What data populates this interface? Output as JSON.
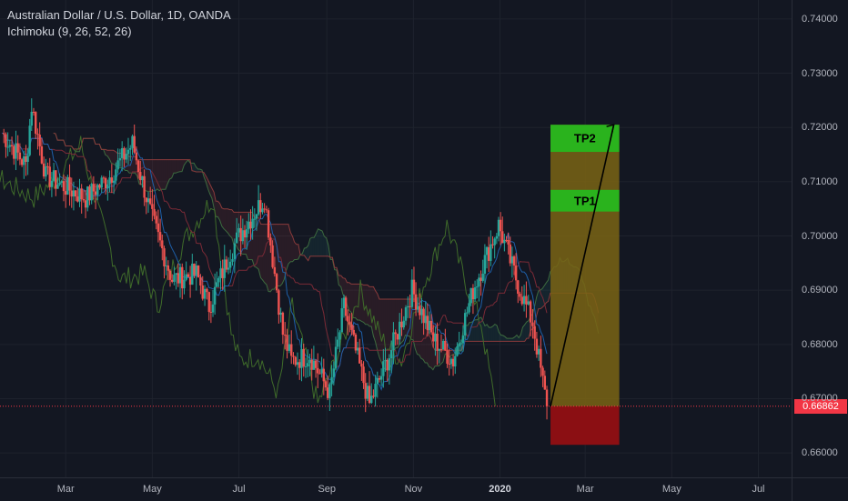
{
  "legend": {
    "symbol": "Australian Dollar / U.S. Dollar, 1D, OANDA",
    "indicator": "Ichimoku (9, 26, 52, 26)"
  },
  "price_scale": {
    "labels": [
      "0.74000",
      "0.73000",
      "0.72000",
      "0.71000",
      "0.70000",
      "0.69000",
      "0.68000",
      "0.67000",
      "0.66000"
    ],
    "current_price": "0.66862"
  },
  "time_scale": {
    "labels": [
      "Mar",
      "May",
      "Jul",
      "Sep",
      "Nov",
      "2020",
      "Mar",
      "May",
      "Jul"
    ]
  },
  "drawing": {
    "tp1_label": "TP1",
    "tp2_label": "TP2"
  },
  "colors": {
    "background": "#131722",
    "up_candle": "#26a69a",
    "down_candle": "#ef5350",
    "current_price": "#f23645",
    "profit_zone": "#7a6414",
    "loss_zone": "#8b0f13",
    "tp_zone": "#2ab31d"
  },
  "chart_data": {
    "type": "candlestick",
    "symbol": "AUDUSD",
    "timeframe": "1D",
    "ylim": [
      0.6555,
      0.7435
    ],
    "series_close_path": [
      [
        "2019-01-15",
        0.719
      ],
      [
        "2019-02-01",
        0.713
      ],
      [
        "2019-02-05",
        0.724
      ],
      [
        "2019-02-15",
        0.711
      ],
      [
        "2019-03-01",
        0.709
      ],
      [
        "2019-03-15",
        0.707
      ],
      [
        "2019-04-01",
        0.711
      ],
      [
        "2019-04-17",
        0.717
      ],
      [
        "2019-05-01",
        0.703
      ],
      [
        "2019-05-15",
        0.692
      ],
      [
        "2019-06-01",
        0.693
      ],
      [
        "2019-06-10",
        0.687
      ],
      [
        "2019-06-25",
        0.697
      ],
      [
        "2019-07-01",
        0.7
      ],
      [
        "2019-07-19",
        0.707
      ],
      [
        "2019-08-01",
        0.682
      ],
      [
        "2019-08-07",
        0.677
      ],
      [
        "2019-08-20",
        0.678
      ],
      [
        "2019-09-03",
        0.671
      ],
      [
        "2019-09-13",
        0.687
      ],
      [
        "2019-10-01",
        0.669
      ],
      [
        "2019-10-15",
        0.678
      ],
      [
        "2019-10-31",
        0.69
      ],
      [
        "2019-11-15",
        0.681
      ],
      [
        "2019-11-29",
        0.677
      ],
      [
        "2019-12-13",
        0.69
      ],
      [
        "2019-12-31",
        0.702
      ],
      [
        "2020-01-15",
        0.69
      ],
      [
        "2020-01-24",
        0.684
      ],
      [
        "2020-02-03",
        0.6686
      ]
    ],
    "position": {
      "entry": 0.6686,
      "stop": 0.6615,
      "tp1": [
        0.7045,
        0.7085
      ],
      "tp2": [
        0.7155,
        0.7205
      ],
      "entry_date": "2020-02-03",
      "end_date": "2020-03-25"
    }
  }
}
